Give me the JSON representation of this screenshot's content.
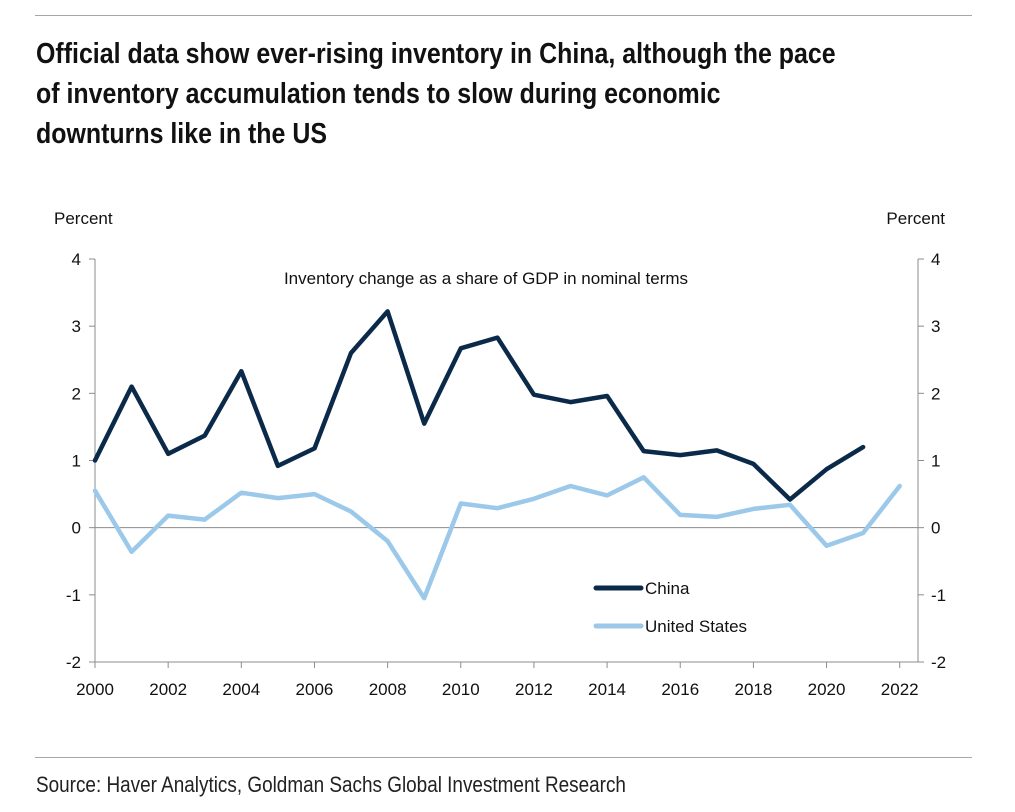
{
  "title": "Official data show ever-rising inventory in China, although the pace of inventory accumulation tends to slow during economic downturns like in the US",
  "source": "Source: Haver Analytics, Goldman Sachs Global Investment Research",
  "chart_data": {
    "type": "line",
    "subtitle": "Inventory change as a share of GDP in nominal terms",
    "ylabel_left": "Percent",
    "ylabel_right": "Percent",
    "xlim": [
      2000,
      2022.5
    ],
    "ylim": [
      -2,
      4
    ],
    "x_ticks": [
      "2000",
      "2002",
      "2004",
      "2006",
      "2008",
      "2010",
      "2012",
      "2014",
      "2016",
      "2018",
      "2020",
      "2022"
    ],
    "y_ticks": [
      "4",
      "3",
      "2",
      "1",
      "0",
      "-1",
      "-2"
    ],
    "grid": false,
    "legend_position": "lower-center",
    "series": [
      {
        "name": "China",
        "color": "#0b2a4a",
        "x": [
          2000,
          2001,
          2002,
          2003,
          2004,
          2005,
          2006,
          2007,
          2008,
          2009,
          2010,
          2011,
          2012,
          2013,
          2014,
          2015,
          2016,
          2017,
          2018,
          2019,
          2020,
          2021
        ],
        "values": [
          1.0,
          2.1,
          1.1,
          1.37,
          2.33,
          0.92,
          1.18,
          2.6,
          3.22,
          1.55,
          2.67,
          2.83,
          1.98,
          1.87,
          1.96,
          1.14,
          1.08,
          1.15,
          0.95,
          0.42,
          0.87,
          1.2
        ]
      },
      {
        "name": "United States",
        "color": "#9cc9ea",
        "x": [
          2000,
          2001,
          2002,
          2003,
          2004,
          2005,
          2006,
          2007,
          2008,
          2009,
          2010,
          2011,
          2012,
          2013,
          2014,
          2015,
          2016,
          2017,
          2018,
          2019,
          2020,
          2021,
          2022
        ],
        "values": [
          0.55,
          -0.36,
          0.18,
          0.12,
          0.52,
          0.44,
          0.5,
          0.24,
          -0.2,
          -1.05,
          0.36,
          0.29,
          0.43,
          0.62,
          0.48,
          0.75,
          0.19,
          0.16,
          0.28,
          0.34,
          -0.27,
          -0.08,
          0.62
        ]
      }
    ]
  }
}
